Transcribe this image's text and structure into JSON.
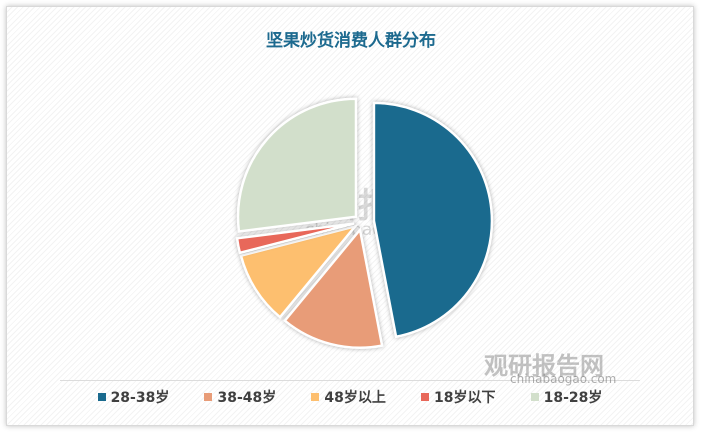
{
  "chart_data": {
    "type": "pie",
    "title": "坚果炒货消费人群分布",
    "categories": [
      "28-38岁",
      "38-48岁",
      "48岁以上",
      "18岁以下",
      "18-28岁"
    ],
    "values": [
      47,
      14,
      10,
      2,
      27
    ],
    "colors": [
      "#1a6a8e",
      "#e89c78",
      "#fdbf6f",
      "#e8685a",
      "#d2dfcb"
    ],
    "legend_position": "bottom",
    "exploded": true
  },
  "watermark": {
    "brand": "观研报告网",
    "url": "chinabaogao.com"
  }
}
